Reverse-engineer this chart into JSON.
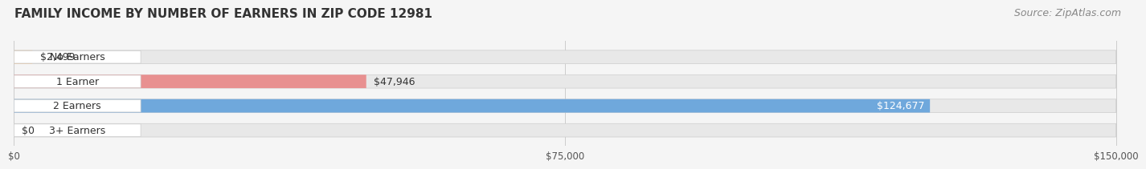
{
  "title": "FAMILY INCOME BY NUMBER OF EARNERS IN ZIP CODE 12981",
  "source": "Source: ZipAtlas.com",
  "categories": [
    "No Earners",
    "1 Earner",
    "2 Earners",
    "3+ Earners"
  ],
  "values": [
    2499,
    47946,
    124677,
    0
  ],
  "bar_colors": [
    "#f5c89a",
    "#e89090",
    "#6fa8dc",
    "#c3a8d1"
  ],
  "label_colors": [
    "#333333",
    "#333333",
    "#ffffff",
    "#333333"
  ],
  "xlim": [
    0,
    150000
  ],
  "xticks": [
    0,
    75000,
    150000
  ],
  "xtick_labels": [
    "$0",
    "$75,000",
    "$150,000"
  ],
  "background_color": "#f5f5f5",
  "bar_background": "#e8e8e8",
  "title_fontsize": 11,
  "source_fontsize": 9,
  "bar_height": 0.55,
  "bar_label_fontsize": 9,
  "category_fontsize": 9
}
